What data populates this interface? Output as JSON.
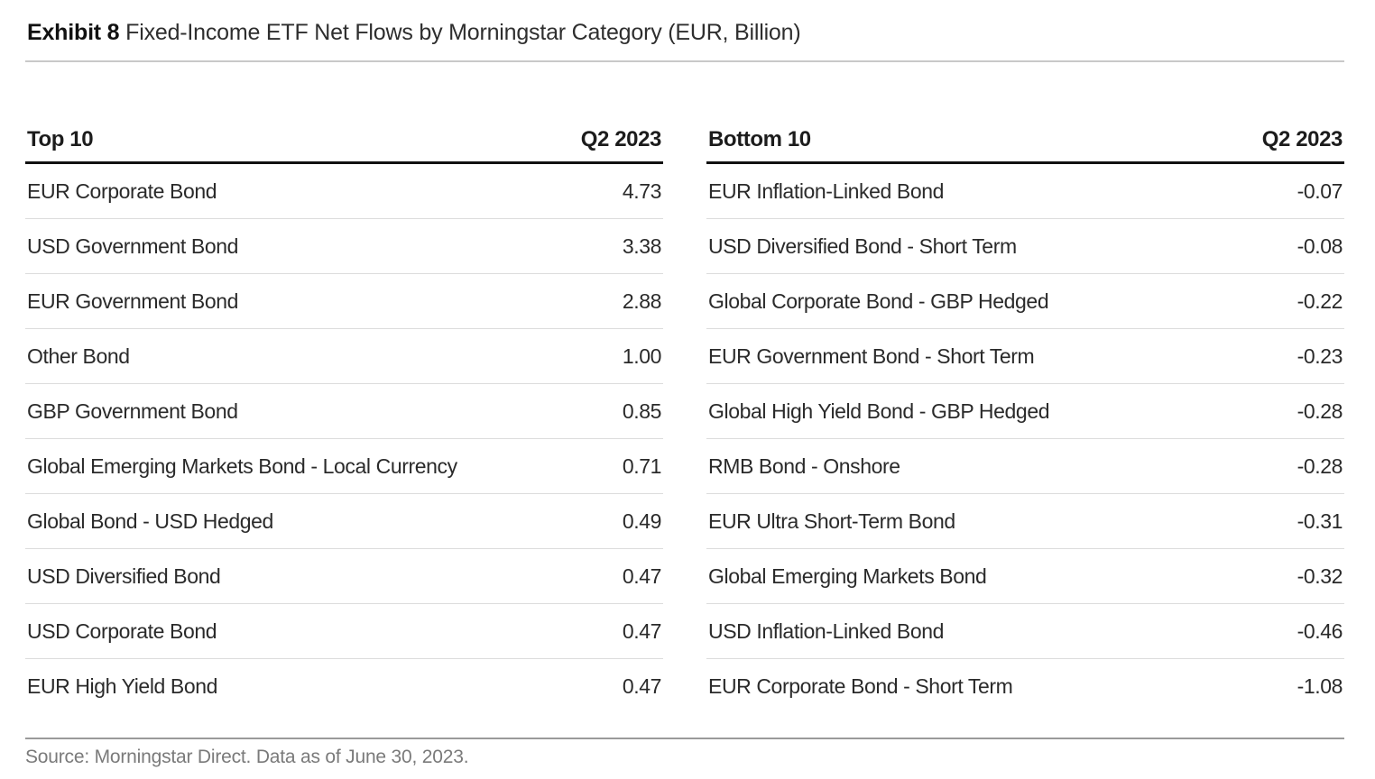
{
  "header": {
    "exhibit_label": "Exhibit 8",
    "title": "Fixed-Income ETF Net Flows by Morningstar Category (EUR, Billion)"
  },
  "footer": {
    "source": "Source: Morningstar Direct. Data as of June 30, 2023."
  },
  "chart_data": [
    {
      "type": "table",
      "name": "top-10-net-flows",
      "columns": [
        "Top 10",
        "Q2 2023"
      ],
      "rows": [
        [
          "EUR Corporate Bond",
          "4.73"
        ],
        [
          "USD Government Bond",
          "3.38"
        ],
        [
          "EUR Government Bond",
          "2.88"
        ],
        [
          "Other Bond",
          "1.00"
        ],
        [
          "GBP Government Bond",
          "0.85"
        ],
        [
          "Global Emerging Markets Bond - Local Currency",
          "0.71"
        ],
        [
          "Global Bond - USD Hedged",
          "0.49"
        ],
        [
          "USD Diversified Bond",
          "0.47"
        ],
        [
          "USD Corporate Bond",
          "0.47"
        ],
        [
          "EUR High Yield Bond",
          "0.47"
        ]
      ]
    },
    {
      "type": "table",
      "name": "bottom-10-net-flows",
      "columns": [
        "Bottom 10",
        "Q2 2023"
      ],
      "rows": [
        [
          "EUR Inflation-Linked Bond",
          "-0.07"
        ],
        [
          "USD Diversified Bond - Short Term",
          "-0.08"
        ],
        [
          "Global Corporate Bond - GBP Hedged",
          "-0.22"
        ],
        [
          "EUR Government Bond - Short Term",
          "-0.23"
        ],
        [
          "Global High Yield Bond - GBP Hedged",
          "-0.28"
        ],
        [
          "RMB Bond - Onshore",
          "-0.28"
        ],
        [
          "EUR Ultra Short-Term Bond",
          "-0.31"
        ],
        [
          "Global Emerging Markets Bond",
          "-0.32"
        ],
        [
          "USD Inflation-Linked Bond",
          "-0.46"
        ],
        [
          "EUR Corporate Bond - Short Term",
          "-1.08"
        ]
      ]
    }
  ]
}
